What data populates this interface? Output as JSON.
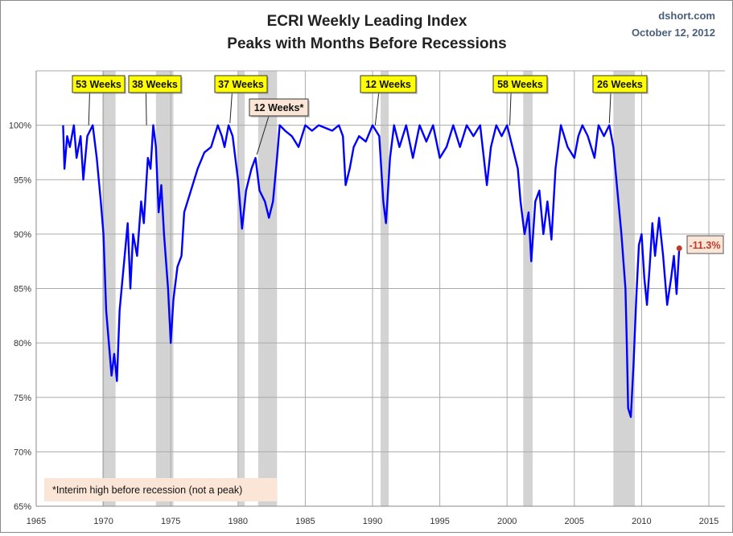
{
  "chart_data": {
    "type": "line",
    "title": "ECRI Weekly Leading Index",
    "subtitle": "Peaks with Months Before Recessions",
    "source": "dshort.com",
    "date": "October 12, 2012",
    "xlabel": "",
    "ylabel": "",
    "xlim": [
      1965,
      2015
    ],
    "ylim": [
      65,
      105
    ],
    "x_ticks": [
      "1965",
      "1970",
      "1975",
      "1980",
      "1985",
      "1990",
      "1995",
      "2000",
      "2005",
      "2010",
      "2015"
    ],
    "y_ticks": [
      "65%",
      "70%",
      "75%",
      "80%",
      "85%",
      "90%",
      "95%",
      "100%"
    ],
    "grid": true,
    "line_color": "#0000ff",
    "recession_color": "#d3d3d3",
    "recessions": [
      [
        1969.9,
        1970.9
      ],
      [
        1973.9,
        1975.2
      ],
      [
        1980.0,
        1980.5
      ],
      [
        1981.5,
        1982.9
      ],
      [
        1990.6,
        1991.2
      ],
      [
        2001.2,
        2001.9
      ],
      [
        2007.9,
        2009.5
      ]
    ],
    "series": [
      {
        "x": [
          1967.0,
          1967.1,
          1967.3,
          1967.5,
          1967.8,
          1968.0,
          1968.3,
          1968.5,
          1968.8,
          1969.0,
          1969.2,
          1969.5,
          1969.8,
          1970.0,
          1970.2,
          1970.4,
          1970.6,
          1970.8,
          1971.0,
          1971.2,
          1971.5,
          1971.8,
          1972.0,
          1972.2,
          1972.5,
          1972.8,
          1973.0,
          1973.3,
          1973.5,
          1973.7,
          1973.9,
          1974.1,
          1974.3,
          1974.5,
          1974.8,
          1975.0,
          1975.2,
          1975.5,
          1975.8,
          1976.0,
          1976.5,
          1977.0,
          1977.5,
          1978.0,
          1978.5,
          1978.8,
          1979.0,
          1979.3,
          1979.6,
          1980.0,
          1980.3,
          1980.6,
          1981.0,
          1981.3,
          1981.6,
          1982.0,
          1982.3,
          1982.6,
          1982.9,
          1983.1,
          1983.5,
          1984.0,
          1984.5,
          1985.0,
          1985.5,
          1986.0,
          1987.0,
          1987.5,
          1987.8,
          1988.0,
          1988.3,
          1988.6,
          1989.0,
          1989.5,
          1990.0,
          1990.5,
          1990.8,
          1991.0,
          1991.3,
          1991.6,
          1992.0,
          1992.5,
          1993.0,
          1993.5,
          1994.0,
          1994.5,
          1995.0,
          1995.5,
          1996.0,
          1996.5,
          1997.0,
          1997.5,
          1998.0,
          1998.5,
          1998.8,
          1999.2,
          1999.6,
          2000.0,
          2000.4,
          2000.8,
          2001.0,
          2001.3,
          2001.6,
          2001.8,
          2002.1,
          2002.4,
          2002.7,
          2003.0,
          2003.3,
          2003.6,
          2004.0,
          2004.5,
          2005.0,
          2005.3,
          2005.6,
          2006.0,
          2006.5,
          2006.8,
          2007.2,
          2007.6,
          2007.9,
          2008.2,
          2008.5,
          2008.8,
          2008.9,
          2009.0,
          2009.2,
          2009.4,
          2009.6,
          2009.8,
          2010.0,
          2010.2,
          2010.4,
          2010.6,
          2010.8,
          2011.0,
          2011.3,
          2011.6,
          2011.9,
          2012.2,
          2012.4,
          2012.6,
          2012.8
        ],
        "y": [
          100,
          96,
          99,
          98,
          100,
          97,
          99,
          95,
          99,
          99.5,
          100,
          97,
          93,
          90,
          83,
          80,
          77,
          79,
          76.5,
          83,
          87,
          91,
          85,
          90,
          88,
          93,
          91,
          97,
          96,
          100,
          98,
          92,
          94.5,
          90,
          85,
          80,
          84,
          87,
          88,
          92,
          94,
          96,
          97.5,
          98,
          100,
          99,
          98,
          100,
          99,
          95,
          90.5,
          94,
          96,
          97,
          94,
          93,
          91.5,
          93,
          97,
          100,
          99.5,
          99,
          98,
          100,
          99.5,
          100,
          99.5,
          100,
          99,
          94.5,
          96,
          98,
          99,
          98.5,
          100,
          99,
          93,
          91,
          97,
          100,
          98,
          100,
          97,
          100,
          98.5,
          100,
          97,
          98,
          100,
          98,
          100,
          99,
          100,
          94.5,
          98,
          100,
          99,
          100,
          98,
          96,
          93,
          90,
          92,
          87.5,
          93,
          94,
          90,
          93,
          89.5,
          96,
          100,
          98,
          97,
          99,
          100,
          99,
          97,
          100,
          99,
          100,
          98,
          94,
          90,
          85,
          80,
          74,
          73.2,
          78,
          84,
          89,
          90,
          86,
          83.5,
          87,
          91,
          88,
          91.5,
          88,
          83.5,
          86,
          88,
          84.5,
          88.7
        ]
      }
    ],
    "last_point_label": "-11.3%",
    "last_point_color": "#c0392b",
    "annotations": [
      {
        "text": "53 Weeks",
        "peak_x": 1968.9,
        "peak_y": 100,
        "style": "peak"
      },
      {
        "text": "38 Weeks",
        "peak_x": 1973.2,
        "peak_y": 100,
        "style": "peak"
      },
      {
        "text": "37 Weeks",
        "peak_x": 1979.4,
        "peak_y": 100.2,
        "style": "peak"
      },
      {
        "text": "12 Weeks*",
        "peak_x": 1981.4,
        "peak_y": 97.3,
        "style": "interim"
      },
      {
        "text": "12 Weeks",
        "peak_x": 1990.2,
        "peak_y": 100,
        "style": "peak"
      },
      {
        "text": "58 Weeks",
        "peak_x": 2000.2,
        "peak_y": 100,
        "style": "peak"
      },
      {
        "text": "26 Weeks",
        "peak_x": 2007.6,
        "peak_y": 100.2,
        "style": "peak"
      }
    ],
    "footnote": "*Interim high before recession (not a peak)"
  }
}
